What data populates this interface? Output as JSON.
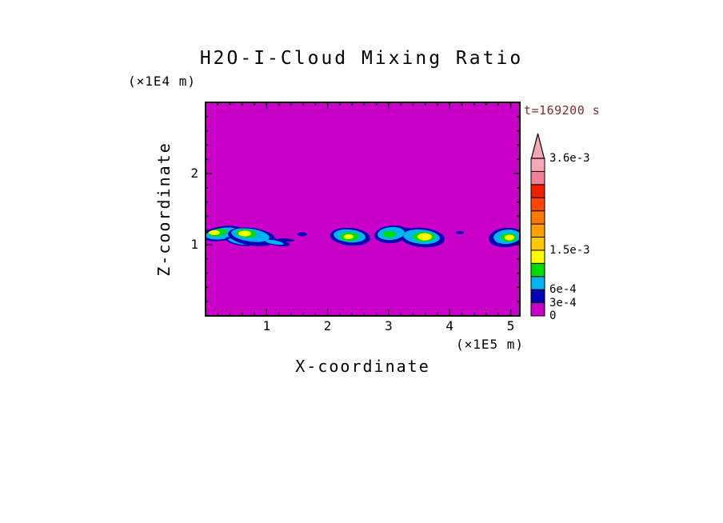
{
  "title": "H2O-I-Cloud Mixing Ratio",
  "annotations": {
    "time": "t=169200 s"
  },
  "axes": {
    "x": {
      "label": "X-coordinate",
      "unit": "(×1E5 m)",
      "ticks": [
        1,
        2,
        3,
        4,
        5
      ],
      "range": [
        0,
        5.15
      ]
    },
    "z": {
      "label": "Z-coordinate",
      "unit": "(×1E4 m)",
      "ticks": [
        1,
        2
      ],
      "range": [
        0,
        3.0
      ]
    }
  },
  "colors": {
    "background": "#FFFFFF",
    "plot_background": "#C800C8",
    "text": "#000000",
    "time_text": "#7B3030",
    "frame": "#000000"
  },
  "colorbar": {
    "levels": [
      0,
      0.0003,
      0.0006,
      0.0009,
      0.0012,
      0.0015,
      0.0018,
      0.0021,
      0.0024,
      0.0027,
      0.003,
      0.0033,
      0.0036
    ],
    "colors": [
      "#C800C8",
      "#0000B4",
      "#00B4F0",
      "#00DC00",
      "#FFFF00",
      "#FFC800",
      "#FFA000",
      "#FF7800",
      "#FF4600",
      "#F01E00",
      "#F08098",
      "#F4A7B4"
    ],
    "over_color": "#F4A7B4",
    "tick_labels": [
      {
        "text": "3.6e-3",
        "index": 12
      },
      {
        "text": "1.5e-3",
        "index": 5
      },
      {
        "text": "6e-4",
        "index": 2
      },
      {
        "text": "3e-4",
        "index": 1
      },
      {
        "text": "0",
        "index": 0
      }
    ]
  },
  "chart_data": {
    "type": "heatmap",
    "title": "H2O-I-Cloud Mixing Ratio",
    "xlabel": "X-coordinate (×1E5 m)",
    "ylabel": "Z-coordinate (×1E4 m)",
    "time": "t=169200 s",
    "xlim": [
      0,
      5.15
    ],
    "ylim": [
      0,
      3.0
    ],
    "contour_levels": [
      0,
      0.0003,
      0.0006,
      0.0009,
      0.0012,
      0.0015,
      0.0018,
      0.0021,
      0.0024,
      0.0027,
      0.003,
      0.0033,
      0.0036
    ],
    "background_field_value": "below 3e-4 everywhere except cloud band near z=1",
    "clouds": [
      {
        "name": "cloud-1",
        "layers": [
          {
            "level": 1,
            "cx": 0.275,
            "cz": 1.157,
            "rx": 0.341,
            "rz": 0.101,
            "rot": -8
          },
          {
            "level": 2,
            "cx": 0.275,
            "cz": 1.157,
            "rx": 0.275,
            "rz": 0.079,
            "rot": -8
          },
          {
            "level": 3,
            "cx": 0.197,
            "cz": 1.169,
            "rx": 0.157,
            "rz": 0.051,
            "rot": -8
          },
          {
            "level": 4,
            "cx": 0.144,
            "cz": 1.169,
            "rx": 0.092,
            "rz": 0.034,
            "rot": 0
          }
        ]
      },
      {
        "name": "cloud-1-streak",
        "layers": [
          {
            "level": 1,
            "cx": 0.537,
            "cz": 1.045,
            "rx": 0.223,
            "rz": 0.051,
            "rot": 12
          },
          {
            "level": 2,
            "cx": 0.537,
            "cz": 1.045,
            "rx": 0.17,
            "rz": 0.034,
            "rot": 12
          }
        ]
      },
      {
        "name": "cloud-2",
        "layers": [
          {
            "level": 1,
            "cx": 0.76,
            "cz": 1.112,
            "rx": 0.393,
            "rz": 0.124,
            "rot": 8
          },
          {
            "level": 1,
            "cx": 1.153,
            "cz": 1.034,
            "rx": 0.236,
            "rz": 0.045,
            "rot": 10
          },
          {
            "level": 2,
            "cx": 0.734,
            "cz": 1.135,
            "rx": 0.315,
            "rz": 0.09,
            "rot": 8
          },
          {
            "level": 2,
            "cx": 1.127,
            "cz": 1.034,
            "rx": 0.157,
            "rz": 0.028,
            "rot": 10
          },
          {
            "level": 3,
            "cx": 0.668,
            "cz": 1.157,
            "rx": 0.17,
            "rz": 0.056,
            "rot": 5
          },
          {
            "level": 4,
            "cx": 0.642,
            "cz": 1.157,
            "rx": 0.105,
            "rz": 0.039,
            "rot": 0
          }
        ]
      },
      {
        "name": "cloud-2-tail",
        "layers": [
          {
            "level": 1,
            "cx": 1.324,
            "cz": 1.067,
            "rx": 0.131,
            "rz": 0.022,
            "rot": 5
          }
        ]
      },
      {
        "name": "smudge-1",
        "layers": [
          {
            "level": 1,
            "cx": 1.586,
            "cz": 1.146,
            "rx": 0.079,
            "rz": 0.028,
            "rot": 0
          }
        ]
      },
      {
        "name": "cloud-3",
        "layers": [
          {
            "level": 1,
            "cx": 2.372,
            "cz": 1.112,
            "rx": 0.328,
            "rz": 0.124,
            "rot": 5
          },
          {
            "level": 2,
            "cx": 2.359,
            "cz": 1.124,
            "rx": 0.262,
            "rz": 0.09,
            "rot": 5
          },
          {
            "level": 3,
            "cx": 2.359,
            "cz": 1.112,
            "rx": 0.157,
            "rz": 0.062,
            "rot": 0
          },
          {
            "level": 4,
            "cx": 2.346,
            "cz": 1.112,
            "rx": 0.079,
            "rz": 0.034,
            "rot": 0
          }
        ]
      },
      {
        "name": "cloud-4",
        "layers": [
          {
            "level": 1,
            "cx": 3.054,
            "cz": 1.146,
            "rx": 0.288,
            "rz": 0.124,
            "rot": -5
          },
          {
            "level": 1,
            "cx": 3.29,
            "cz": 1.18,
            "rx": 0.157,
            "rz": 0.056,
            "rot": 0
          },
          {
            "level": 1,
            "cx": 3.552,
            "cz": 1.101,
            "rx": 0.367,
            "rz": 0.135,
            "rot": 5
          },
          {
            "level": 2,
            "cx": 3.041,
            "cz": 1.157,
            "rx": 0.223,
            "rz": 0.09,
            "rot": -5
          },
          {
            "level": 2,
            "cx": 3.539,
            "cz": 1.112,
            "rx": 0.301,
            "rz": 0.101,
            "rot": 5
          },
          {
            "level": 3,
            "cx": 3.014,
            "cz": 1.146,
            "rx": 0.105,
            "rz": 0.045,
            "rot": 0
          },
          {
            "level": 3,
            "cx": 3.578,
            "cz": 1.112,
            "rx": 0.183,
            "rz": 0.067,
            "rot": 0
          },
          {
            "level": 4,
            "cx": 3.591,
            "cz": 1.112,
            "rx": 0.118,
            "rz": 0.051,
            "rot": 0
          }
        ]
      },
      {
        "name": "smudge-2",
        "layers": [
          {
            "level": 1,
            "cx": 4.168,
            "cz": 1.169,
            "rx": 0.066,
            "rz": 0.022,
            "rot": 0
          }
        ]
      },
      {
        "name": "cloud-5",
        "layers": [
          {
            "level": 1,
            "cx": 4.928,
            "cz": 1.101,
            "rx": 0.288,
            "rz": 0.135,
            "rot": -5
          },
          {
            "level": 2,
            "cx": 4.941,
            "cz": 1.112,
            "rx": 0.223,
            "rz": 0.101,
            "rot": -5
          },
          {
            "level": 3,
            "cx": 4.967,
            "cz": 1.101,
            "rx": 0.131,
            "rz": 0.062,
            "rot": 0
          },
          {
            "level": 4,
            "cx": 4.98,
            "cz": 1.101,
            "rx": 0.079,
            "rz": 0.039,
            "rot": 0
          }
        ]
      }
    ]
  }
}
